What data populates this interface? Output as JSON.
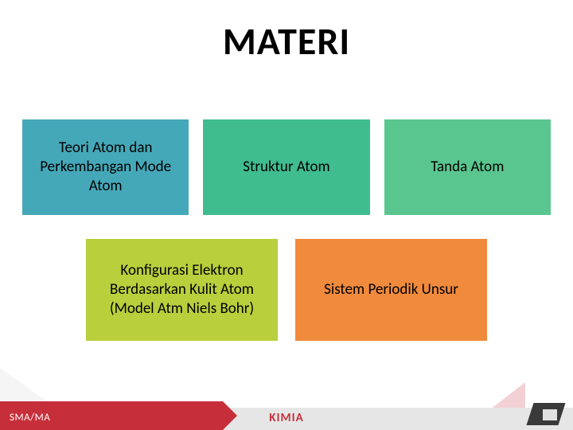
{
  "title": "MATERI",
  "cards_row1": [
    {
      "label": "Teori Atom dan Perkembangan Mode Atom",
      "bg": "#45a8b8"
    },
    {
      "label": "Struktur Atom",
      "bg": "#3fbd8e"
    },
    {
      "label": "Tanda Atom",
      "bg": "#5ac68f"
    }
  ],
  "cards_row2": [
    {
      "label": "Konfigurasi Elektron Berdasarkan Kulit Atom (Model Atm Niels Bohr)",
      "bg": "#b9cf3c"
    },
    {
      "label": "Sistem Periodik Unsur",
      "bg": "#f08a3c"
    }
  ],
  "footer": {
    "left": "SMA/MA",
    "center": "KIMIA"
  },
  "colors": {
    "title": "#000000",
    "footer_red": "#c62f3a",
    "footer_gray": "#e6e6e6"
  }
}
